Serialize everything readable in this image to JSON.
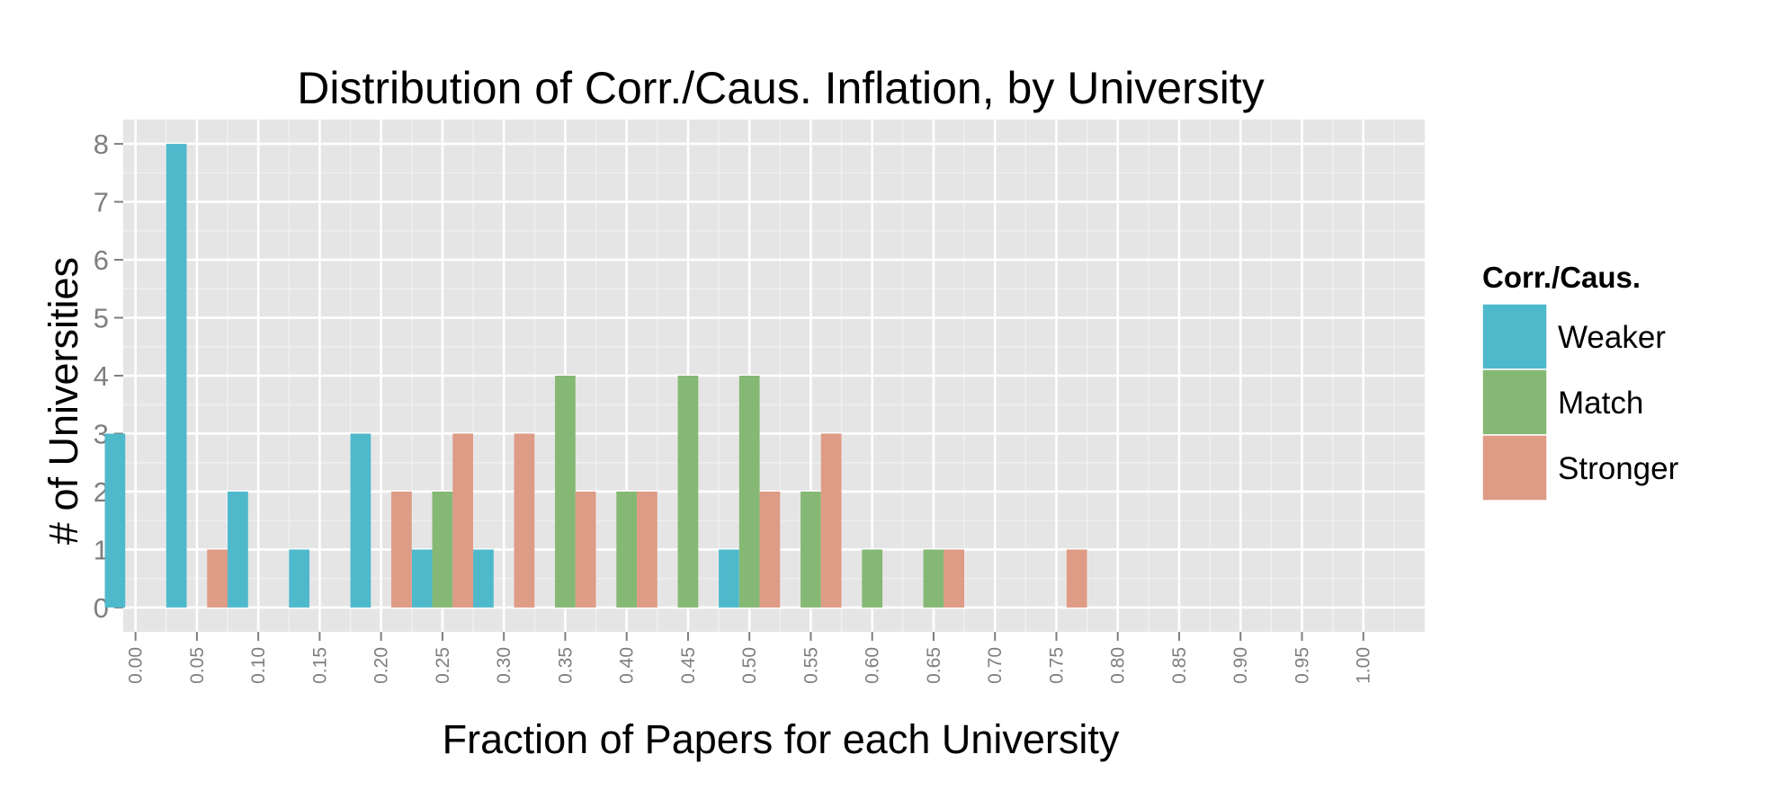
{
  "chart_data": {
    "type": "bar",
    "title": "Distribution of Corr./Caus. Inflation, by University",
    "xlabel": "Fraction of Papers for each University",
    "ylabel": "# of Universities",
    "xlim": [
      -0.01,
      1.05
    ],
    "ylim": [
      -0.42,
      8.42
    ],
    "x_ticks": [
      "0.00",
      "0.05",
      "0.10",
      "0.15",
      "0.20",
      "0.25",
      "0.30",
      "0.35",
      "0.40",
      "0.45",
      "0.50",
      "0.55",
      "0.60",
      "0.65",
      "0.70",
      "0.75",
      "0.80",
      "0.85",
      "0.90",
      "0.95",
      "1.00"
    ],
    "y_ticks": [
      "0",
      "1",
      "2",
      "3",
      "4",
      "5",
      "6",
      "7",
      "8"
    ],
    "bin_width": 0.05,
    "grid": true,
    "legend_placement": "right",
    "legend_title": "Corr./Caus.",
    "series": [
      {
        "name": "Weaker",
        "color": "#4FB9CC",
        "x": [
          0.0,
          0.05,
          0.1,
          0.15,
          0.2,
          0.25,
          0.3,
          0.5
        ],
        "values": [
          3,
          8,
          2,
          1,
          3,
          1,
          1,
          1
        ]
      },
      {
        "name": "Match",
        "color": "#86B875",
        "x": [
          0.25,
          0.35,
          0.4,
          0.45,
          0.5,
          0.55,
          0.6,
          0.65
        ],
        "values": [
          2,
          4,
          2,
          4,
          4,
          2,
          1,
          1
        ]
      },
      {
        "name": "Stronger",
        "color": "#DE9B85",
        "x": [
          0.05,
          0.2,
          0.25,
          0.3,
          0.35,
          0.4,
          0.5,
          0.55,
          0.65,
          0.75
        ],
        "values": [
          1,
          2,
          3,
          3,
          2,
          2,
          2,
          3,
          1,
          1
        ]
      }
    ]
  }
}
